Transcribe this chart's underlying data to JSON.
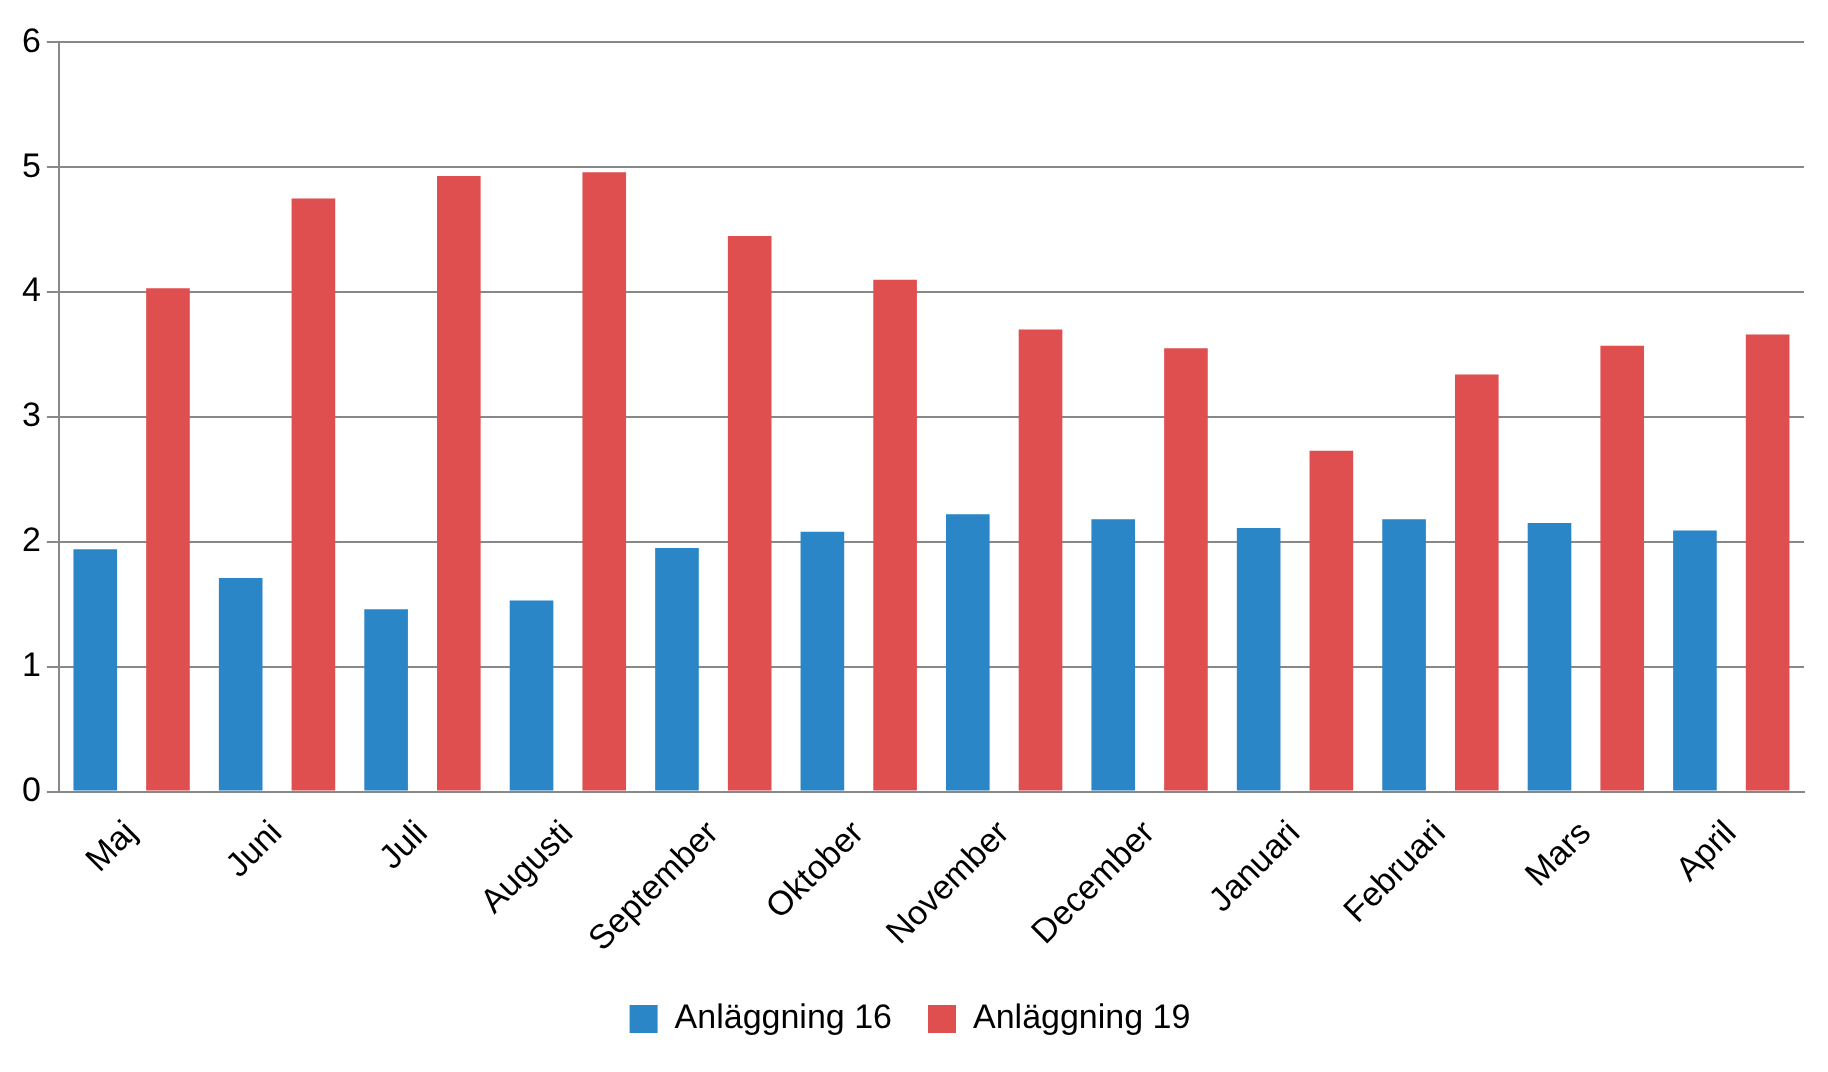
{
  "chart_data": {
    "type": "bar",
    "categories": [
      "Maj",
      "Juni",
      "Juli",
      "Augusti",
      "September",
      "Oktober",
      "November",
      "December",
      "Januari",
      "Februari",
      "Mars",
      "April"
    ],
    "series": [
      {
        "name": "Anläggning 16",
        "color": "#2a86c6",
        "values": [
          1.94,
          1.71,
          1.46,
          1.53,
          1.95,
          2.08,
          2.22,
          2.18,
          2.11,
          2.18,
          2.15,
          2.09
        ]
      },
      {
        "name": "Anläggning 19",
        "color": "#e04f4f",
        "values": [
          4.03,
          4.75,
          4.93,
          4.96,
          4.45,
          4.1,
          3.7,
          3.55,
          2.73,
          3.34,
          3.57,
          3.66
        ]
      }
    ],
    "ylim": [
      0,
      6
    ],
    "yticks": [
      0,
      1,
      2,
      3,
      4,
      5,
      6
    ],
    "grid": "y",
    "legend": "bottom"
  }
}
